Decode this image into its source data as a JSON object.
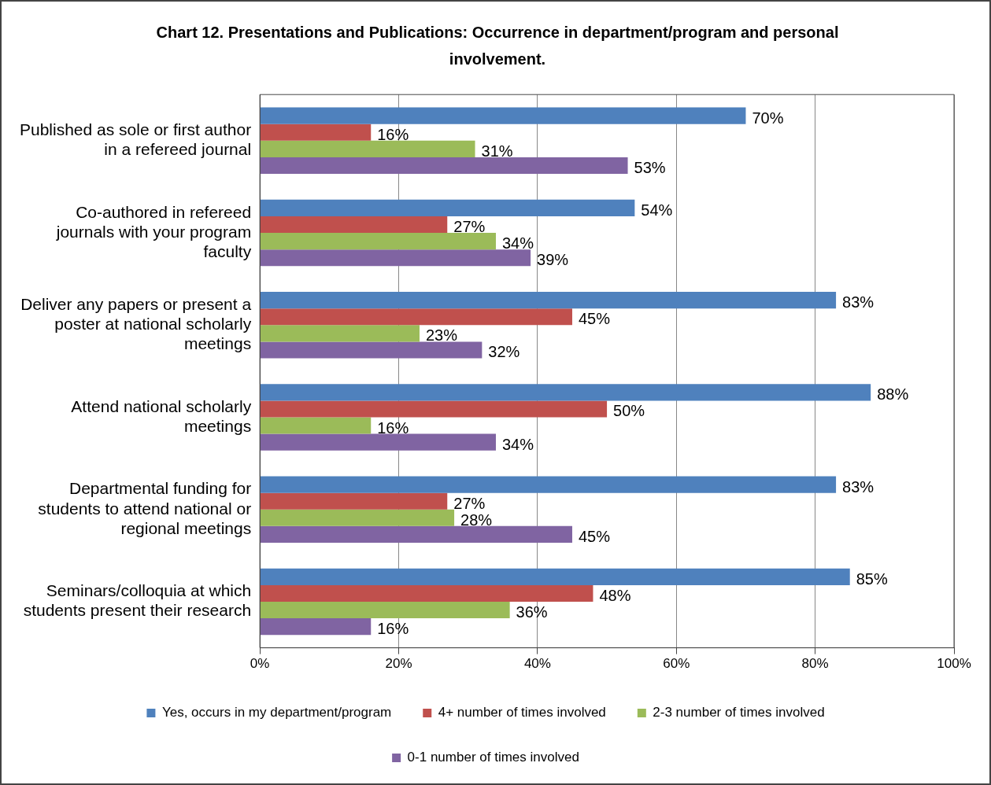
{
  "chart_data": {
    "type": "bar",
    "orientation": "horizontal",
    "title": "Chart 12.  Presentations and Publications:  Occurrence in department/program and personal involvement.",
    "categories": [
      "Published as sole or first author in a refereed journal",
      "Co-authored in refereed journals with your program faculty",
      "Deliver any papers or present a poster at national scholarly meetings",
      "Attend national scholarly meetings",
      "Departmental funding for students to attend national or regional meetings",
      "Seminars/colloquia at which students present their research"
    ],
    "series": [
      {
        "name": "Yes, occurs in my department/program",
        "color": "#4f81bd",
        "values": [
          70,
          54,
          83,
          88,
          83,
          85
        ],
        "value_labels": [
          "70%",
          "54%",
          "83%",
          "88%",
          "83%",
          "85%"
        ]
      },
      {
        "name": "4+ number of times involved",
        "color": "#c0504d",
        "values": [
          16,
          27,
          45,
          50,
          27,
          48
        ],
        "value_labels": [
          "16%",
          "27%",
          "45%",
          "50%",
          "27%",
          "48%"
        ]
      },
      {
        "name": "2-3 number of times involved",
        "color": "#9bbb59",
        "values": [
          31,
          34,
          23,
          16,
          28,
          36
        ],
        "value_labels": [
          "31%",
          "34%",
          "23%",
          "16%",
          "28%",
          "36%"
        ]
      },
      {
        "name": "0-1 number of times involved",
        "color": "#8064a2",
        "values": [
          53,
          39,
          32,
          34,
          45,
          16
        ],
        "value_labels": [
          "53%",
          "39%",
          "32%",
          "34%",
          "45%",
          "16%"
        ]
      }
    ],
    "xlim": [
      0,
      100
    ],
    "xticks": [
      {
        "value": 0,
        "label": "0%"
      },
      {
        "value": 20,
        "label": "20%"
      },
      {
        "value": 40,
        "label": "40%"
      },
      {
        "value": 60,
        "label": "60%"
      },
      {
        "value": 80,
        "label": "80%"
      },
      {
        "value": 100,
        "label": "100%"
      }
    ],
    "grid": "x",
    "legend": "bottom"
  }
}
